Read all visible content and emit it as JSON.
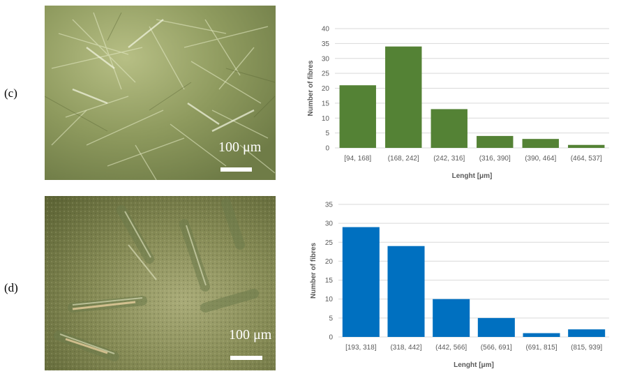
{
  "panels": [
    {
      "id": "c",
      "label": "(c)",
      "micrograph": {
        "scale_label": "100 μm",
        "tone": "green-light"
      },
      "chart_data": {
        "type": "bar",
        "categories": [
          "[94, 168]",
          "(168, 242]",
          "(242, 316]",
          "(316, 390]",
          "(390, 464]",
          "(464, 537]"
        ],
        "values": [
          21,
          34,
          13,
          4,
          3,
          1
        ],
        "xlabel": "Lenght [μm]",
        "ylabel": "Number of fibres",
        "ylim": [
          0,
          40
        ],
        "yticks": [
          0,
          5,
          10,
          15,
          20,
          25,
          30,
          35,
          40
        ],
        "grid": true,
        "color": "#548235"
      }
    },
    {
      "id": "d",
      "label": "(d)",
      "micrograph": {
        "scale_label": "100 μm",
        "tone": "green-dark"
      },
      "chart_data": {
        "type": "bar",
        "categories": [
          "[193, 318]",
          "(318, 442]",
          "(442, 566]",
          "(566, 691]",
          "(691, 815]",
          "(815, 939]"
        ],
        "values": [
          29,
          24,
          10,
          5,
          1,
          2
        ],
        "xlabel": "Lenght [μm]",
        "ylabel": "Number of fibres",
        "ylim": [
          0,
          35
        ],
        "yticks": [
          0,
          5,
          10,
          15,
          20,
          25,
          30,
          35
        ],
        "grid": true,
        "color": "#0070c0"
      }
    }
  ]
}
